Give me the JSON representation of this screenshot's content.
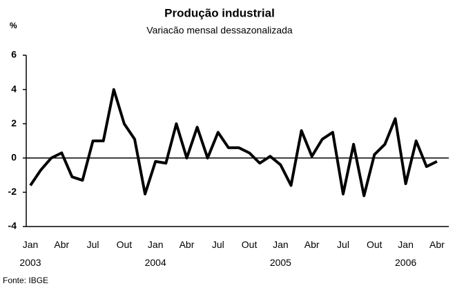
{
  "chart_data": {
    "type": "line",
    "title": "Produção industrial",
    "subtitle": "Variacão mensal dessazonalizada",
    "y_label": "%",
    "source": "Fonte: IBGE",
    "categories": [
      "Jan 2003",
      null,
      null,
      "Abr",
      null,
      null,
      "Jul",
      null,
      null,
      "Out",
      null,
      null,
      "Jan 2004",
      null,
      null,
      "Abr",
      null,
      null,
      "Jul",
      null,
      null,
      "Out",
      null,
      null,
      "Jan 2005",
      null,
      null,
      "Abr",
      null,
      null,
      "Jul",
      null,
      null,
      "Out",
      null,
      null,
      "Jan 2006",
      null,
      null,
      "Abr"
    ],
    "series": [
      {
        "name": "Produção industrial",
        "color": "#000000",
        "values": [
          -1.6,
          -0.7,
          0.0,
          0.3,
          -1.1,
          -1.3,
          1.0,
          1.0,
          4.0,
          2.0,
          1.1,
          -2.1,
          -0.2,
          -0.3,
          2.0,
          0.0,
          1.8,
          0.0,
          1.5,
          0.6,
          0.6,
          0.3,
          -0.3,
          0.1,
          -0.4,
          -1.6,
          1.6,
          0.1,
          1.1,
          1.5,
          -2.1,
          0.8,
          -2.2,
          0.2,
          0.8,
          2.3,
          -1.5,
          1.0,
          -0.5,
          -0.2
        ]
      }
    ],
    "ylim": [
      -4,
      6
    ],
    "yticks": [
      -4,
      -2,
      0,
      2,
      4,
      6
    ]
  }
}
